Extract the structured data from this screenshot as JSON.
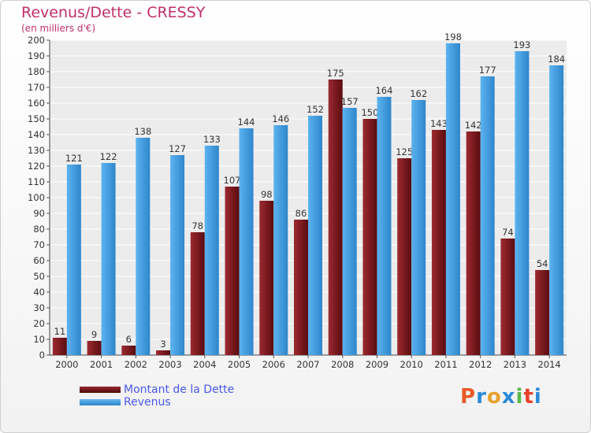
{
  "chart_data": {
    "type": "bar",
    "title": "Revenus/Dette - CRESSY",
    "subtitle": "(en milliers d'€)",
    "categories": [
      "2000",
      "2001",
      "2002",
      "2003",
      "2004",
      "2005",
      "2006",
      "2007",
      "2008",
      "2009",
      "2010",
      "2011",
      "2012",
      "2013",
      "2014"
    ],
    "series": [
      {
        "name": "Montant de la Dette",
        "values": [
          11,
          9,
          6,
          3,
          78,
          107,
          98,
          86,
          175,
          150,
          125,
          143,
          142,
          74,
          54
        ],
        "color": "#7a1a1e"
      },
      {
        "name": "Revenus",
        "values": [
          121,
          122,
          138,
          127,
          133,
          144,
          146,
          152,
          157,
          164,
          162,
          198,
          177,
          193,
          184
        ],
        "color": "#4aa3e8"
      }
    ],
    "yticks": [
      "0",
      "10",
      "20",
      "30",
      "40",
      "50",
      "60",
      "70",
      "80",
      "90",
      "100",
      "110",
      "120",
      "130",
      "140",
      "150",
      "160",
      "170",
      "180",
      "190",
      "200"
    ],
    "ylim": [
      0,
      200
    ],
    "grid": true,
    "legend_position": "bottom-left"
  },
  "logo": {
    "letters": [
      "P",
      "r",
      "o",
      "x",
      "i",
      "t",
      "i"
    ],
    "colors": [
      "#e85a2a",
      "#2a8ad8",
      "#e8a12a",
      "#2a8ad8",
      "#5ab84a",
      "#e8402a",
      "#2a8ad8"
    ]
  }
}
